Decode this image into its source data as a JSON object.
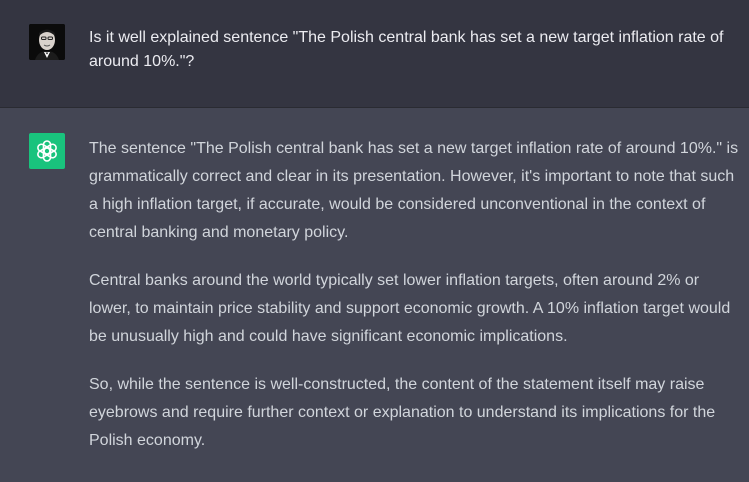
{
  "conversation": {
    "user_message": "Is it well explained sentence \"The Polish central bank has set a new target inflation rate of around 10%.\"?",
    "assistant_paragraphs": [
      "The sentence \"The Polish central bank has set a new target inflation rate of around 10%.\" is grammatically correct and clear in its presentation. However, it's important to note that such a high inflation target, if accurate, would be considered unconventional in the context of central banking and monetary policy.",
      "Central banks around the world typically set lower inflation targets, often around 2% or lower, to maintain price stability and support economic growth. A 10% inflation target would be unusually high and could have significant economic implications.",
      "So, while the sentence is well-constructed, the content of the statement itself may raise eyebrows and require further context or explanation to understand its implications for the Polish economy."
    ]
  },
  "icons": {
    "user_avatar": "user-avatar-icon",
    "assistant_avatar": "openai-logo-icon"
  },
  "colors": {
    "user_background": "#343541",
    "assistant_background": "#444654",
    "assistant_avatar": "#19c37d"
  }
}
